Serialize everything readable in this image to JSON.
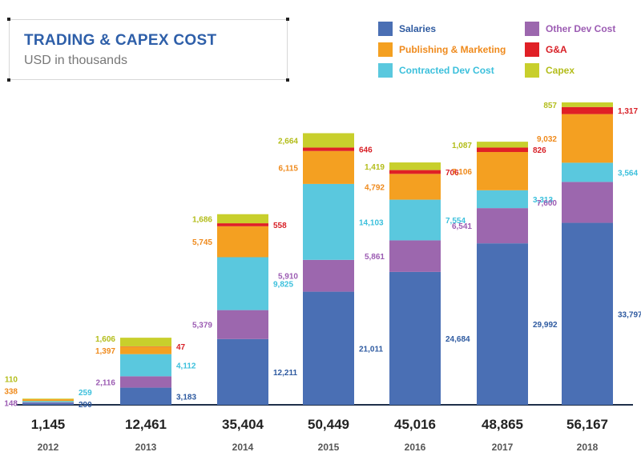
{
  "chart_data": {
    "type": "bar",
    "stacked": true,
    "title": "TRADING & CAPEX COST",
    "subtitle": "USD in thousands",
    "categories": [
      "2012",
      "2013",
      "2014",
      "2015",
      "2016",
      "2017",
      "2018"
    ],
    "totals": [
      "1,145",
      "12,461",
      "35,404",
      "50,449",
      "45,016",
      "48,865",
      "56,167"
    ],
    "series": [
      {
        "name": "Salaries",
        "color": "#4a6fb4",
        "label_color": "#2e5aa0",
        "values": [
          290,
          3183,
          12211,
          21011,
          24684,
          29992,
          33797
        ],
        "labels": [
          "290",
          "3,183",
          "12,211",
          "21,011",
          "24,684",
          "29,992",
          "33,797"
        ]
      },
      {
        "name": "Other Dev Cost",
        "color": "#9c67ae",
        "label_color": "#9c5cb3",
        "values": [
          148,
          2116,
          5379,
          5910,
          5861,
          6541,
          7600
        ],
        "labels": [
          "148",
          "2,116",
          "5,379",
          "5,910",
          "5,861",
          "6,541",
          "7,600"
        ]
      },
      {
        "name": "Contracted Dev Cost",
        "color": "#5ac8de",
        "label_color": "#3cc0dc",
        "values": [
          259,
          4112,
          9825,
          14103,
          7554,
          3313,
          3564
        ],
        "labels": [
          "259",
          "4,112",
          "9,825",
          "14,103",
          "7,554",
          "3,313",
          "3,564"
        ]
      },
      {
        "name": "Publishing & Marketing",
        "color": "#f4a021",
        "label_color": "#ef8a1c",
        "values": [
          338,
          1397,
          5745,
          6115,
          4792,
          7106,
          9032
        ],
        "labels": [
          "338",
          "1,397",
          "5,745",
          "6,115",
          "4,792",
          "7,106",
          "9,032"
        ]
      },
      {
        "name": "G&A",
        "color": "#e02026",
        "label_color": "#d81f26",
        "values": [
          0,
          47,
          558,
          646,
          706,
          826,
          1317
        ],
        "labels": [
          "",
          "47",
          "558",
          "646",
          "706",
          "826",
          "1,317"
        ]
      },
      {
        "name": "Capex",
        "color": "#c8cf2c",
        "label_color": "#b3bd1a",
        "values": [
          110,
          1606,
          1686,
          2664,
          1419,
          1087,
          857
        ],
        "labels": [
          "110",
          "1,606",
          "1,686",
          "2,664",
          "1,419",
          "1,087",
          "857"
        ]
      }
    ],
    "legend_position": "top-right",
    "grid": false
  }
}
